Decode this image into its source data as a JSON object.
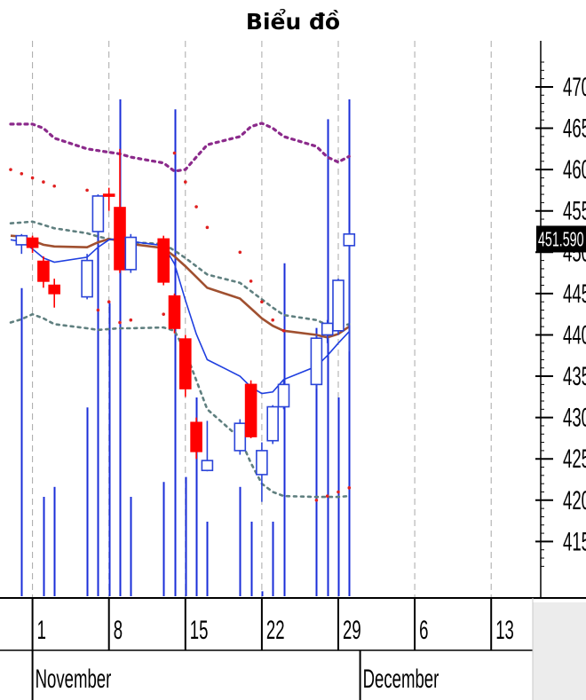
{
  "title": "Biểu đồ",
  "chart_data": {
    "type": "candlestick",
    "title": "Biểu đồ",
    "x_ticks": [
      {
        "label": "1",
        "date": "2023-11-01"
      },
      {
        "label": "8",
        "date": "2023-11-08"
      },
      {
        "label": "15",
        "date": "2023-11-15"
      },
      {
        "label": "22",
        "date": "2023-11-22"
      },
      {
        "label": "29",
        "date": "2023-11-29"
      },
      {
        "label": "6",
        "date": "2023-12-06"
      },
      {
        "label": "13",
        "date": "2023-12-13"
      }
    ],
    "months": [
      {
        "label": "November",
        "date": "2023-11-01"
      },
      {
        "label": "December",
        "date": "2023-12-01"
      }
    ],
    "y_ticks": [
      470,
      465,
      460,
      455,
      450,
      445,
      440,
      435,
      430,
      425,
      420,
      415
    ],
    "y_tick_labels": [
      "470",
      "465",
      "460",
      "455",
      "450",
      "445",
      "440",
      "435",
      "430",
      "425",
      "420",
      "415"
    ],
    "ylim": [
      411.5,
      473
    ],
    "xlim": [
      "2023-10-30",
      "2023-12-15"
    ],
    "last_price_label": "451.590",
    "last_price": 451.59,
    "colors": {
      "up_candle": "#2a44d8",
      "down_candle": "#ff0000",
      "volume": "#1a2ed8",
      "ma_fast": "#1f3fe0",
      "ma_slow": "#a05030",
      "bollinger_outer": "#8b2a8b",
      "bollinger_inner": "#5f7f7f",
      "sar": "#e02020",
      "grid": "#a8a8a8",
      "price_label_bg": "#000000",
      "price_label_text": "#ffffff",
      "axis_band": "#ececec"
    },
    "candles": [
      {
        "date": "2023-10-31",
        "open": 450.9,
        "high": 452.2,
        "low": 449.8,
        "close": 452.0
      },
      {
        "date": "2023-11-01",
        "open": 451.7,
        "high": 452.0,
        "low": 449.9,
        "close": 450.6
      },
      {
        "date": "2023-11-02",
        "open": 448.9,
        "high": 449.5,
        "low": 445.7,
        "close": 446.5
      },
      {
        "date": "2023-11-03",
        "open": 446.0,
        "high": 446.8,
        "low": 443.3,
        "close": 445.0
      },
      {
        "date": "2023-11-06",
        "open": 444.6,
        "high": 449.8,
        "low": 444.3,
        "close": 449.0
      },
      {
        "date": "2023-11-07",
        "open": 452.5,
        "high": 457.0,
        "low": 452.2,
        "close": 456.8
      },
      {
        "date": "2023-11-08",
        "open": 457.0,
        "high": 457.8,
        "low": 455.0,
        "close": 456.9
      },
      {
        "date": "2023-11-09",
        "open": 455.4,
        "high": 462.5,
        "low": 447.5,
        "close": 447.9
      },
      {
        "date": "2023-11-10",
        "open": 447.9,
        "high": 452.2,
        "low": 447.5,
        "close": 451.8
      },
      {
        "date": "2023-11-13",
        "open": 451.6,
        "high": 452.0,
        "low": 446.0,
        "close": 446.4
      },
      {
        "date": "2023-11-14",
        "open": 444.7,
        "high": 445.0,
        "low": 440.2,
        "close": 440.8
      },
      {
        "date": "2023-11-15",
        "open": 439.5,
        "high": 440.0,
        "low": 432.5,
        "close": 433.5
      },
      {
        "date": "2023-11-16",
        "open": 429.4,
        "high": 430.0,
        "low": 425.0,
        "close": 425.9
      },
      {
        "date": "2023-11-17",
        "open": 423.6,
        "high": 429.6,
        "low": 423.5,
        "close": 424.8
      },
      {
        "date": "2023-11-20",
        "open": 426.0,
        "high": 429.8,
        "low": 425.5,
        "close": 429.3
      },
      {
        "date": "2023-11-21",
        "open": 434.0,
        "high": 434.5,
        "low": 427.5,
        "close": 427.7
      },
      {
        "date": "2023-11-22",
        "open": 423.1,
        "high": 427.0,
        "low": 419.8,
        "close": 426.0
      },
      {
        "date": "2023-11-23",
        "open": 427.2,
        "high": 431.5,
        "low": 426.8,
        "close": 431.3
      },
      {
        "date": "2023-11-24",
        "open": 431.3,
        "high": 434.5,
        "low": 431.0,
        "close": 434.0
      },
      {
        "date": "2023-11-27",
        "open": 434.0,
        "high": 440.0,
        "low": 433.5,
        "close": 439.6
      },
      {
        "date": "2023-11-28",
        "open": 440.0,
        "high": 441.8,
        "low": 439.0,
        "close": 441.4
      },
      {
        "date": "2023-11-29",
        "open": 440.5,
        "high": 446.8,
        "low": 440.0,
        "close": 446.6
      },
      {
        "date": "2023-11-30",
        "open": 450.8,
        "high": 452.5,
        "low": 438.0,
        "close": 452.2
      }
    ],
    "volume": [
      {
        "date": "2023-10-31",
        "value": 62
      },
      {
        "date": "2023-11-01",
        "value": 0
      },
      {
        "date": "2023-11-02",
        "value": 20
      },
      {
        "date": "2023-11-03",
        "value": 22
      },
      {
        "date": "2023-11-06",
        "value": 38
      },
      {
        "date": "2023-11-07",
        "value": 75
      },
      {
        "date": "2023-11-08",
        "value": 59
      },
      {
        "date": "2023-11-09",
        "value": 100
      },
      {
        "date": "2023-11-10",
        "value": 20
      },
      {
        "date": "2023-11-13",
        "value": 23
      },
      {
        "date": "2023-11-14",
        "value": 98
      },
      {
        "date": "2023-11-15",
        "value": 24
      },
      {
        "date": "2023-11-16",
        "value": 40
      },
      {
        "date": "2023-11-17",
        "value": 15
      },
      {
        "date": "2023-11-20",
        "value": 22
      },
      {
        "date": "2023-11-21",
        "value": 15
      },
      {
        "date": "2023-11-22",
        "value": 1
      },
      {
        "date": "2023-11-23",
        "value": 15
      },
      {
        "date": "2023-11-24",
        "value": 67
      },
      {
        "date": "2023-11-27",
        "value": 54
      },
      {
        "date": "2023-11-28",
        "value": 96
      },
      {
        "date": "2023-11-29",
        "value": 40
      },
      {
        "date": "2023-11-30",
        "value": 100
      }
    ],
    "ma_fast": [
      {
        "date": "2023-10-30",
        "value": 451.5
      },
      {
        "date": "2023-10-31",
        "value": 451.3
      },
      {
        "date": "2023-11-01",
        "value": 450.4
      },
      {
        "date": "2023-11-02",
        "value": 449.3
      },
      {
        "date": "2023-11-03",
        "value": 448.8
      },
      {
        "date": "2023-11-06",
        "value": 449.4
      },
      {
        "date": "2023-11-07",
        "value": 450.6
      },
      {
        "date": "2023-11-08",
        "value": 451.5
      },
      {
        "date": "2023-11-09",
        "value": 451.7
      },
      {
        "date": "2023-11-10",
        "value": 451.3
      },
      {
        "date": "2023-11-13",
        "value": 450.8
      },
      {
        "date": "2023-11-14",
        "value": 448.6
      },
      {
        "date": "2023-11-15",
        "value": 444.2
      },
      {
        "date": "2023-11-16",
        "value": 440.1
      },
      {
        "date": "2023-11-17",
        "value": 437.0
      },
      {
        "date": "2023-11-20",
        "value": 435.0
      },
      {
        "date": "2023-11-21",
        "value": 433.7
      },
      {
        "date": "2023-11-22",
        "value": 432.9
      },
      {
        "date": "2023-11-23",
        "value": 433.1
      },
      {
        "date": "2023-11-24",
        "value": 434.6
      },
      {
        "date": "2023-11-27",
        "value": 436.2
      },
      {
        "date": "2023-11-28",
        "value": 437.5
      },
      {
        "date": "2023-11-29",
        "value": 439.0
      },
      {
        "date": "2023-11-30",
        "value": 440.4
      }
    ],
    "ma_slow": [
      {
        "date": "2023-10-30",
        "value": 452.0
      },
      {
        "date": "2023-10-31",
        "value": 451.9
      },
      {
        "date": "2023-11-01",
        "value": 451.4
      },
      {
        "date": "2023-11-02",
        "value": 450.9
      },
      {
        "date": "2023-11-03",
        "value": 450.7
      },
      {
        "date": "2023-11-06",
        "value": 450.6
      },
      {
        "date": "2023-11-07",
        "value": 451.2
      },
      {
        "date": "2023-11-08",
        "value": 451.6
      },
      {
        "date": "2023-11-09",
        "value": 451.4
      },
      {
        "date": "2023-11-10",
        "value": 451.0
      },
      {
        "date": "2023-11-13",
        "value": 450.5
      },
      {
        "date": "2023-11-14",
        "value": 449.5
      },
      {
        "date": "2023-11-15",
        "value": 448.3
      },
      {
        "date": "2023-11-16",
        "value": 447.0
      },
      {
        "date": "2023-11-17",
        "value": 445.7
      },
      {
        "date": "2023-11-20",
        "value": 444.4
      },
      {
        "date": "2023-11-21",
        "value": 443.2
      },
      {
        "date": "2023-11-22",
        "value": 442.0
      },
      {
        "date": "2023-11-23",
        "value": 441.1
      },
      {
        "date": "2023-11-24",
        "value": 440.5
      },
      {
        "date": "2023-11-27",
        "value": 440.0
      },
      {
        "date": "2023-11-28",
        "value": 439.7
      },
      {
        "date": "2023-11-29",
        "value": 440.1
      },
      {
        "date": "2023-11-30",
        "value": 441.0
      }
    ],
    "bollinger_upper": [
      {
        "date": "2023-10-30",
        "value": 465.5
      },
      {
        "date": "2023-11-01",
        "value": 465.5
      },
      {
        "date": "2023-11-02",
        "value": 465.0
      },
      {
        "date": "2023-11-03",
        "value": 463.8
      },
      {
        "date": "2023-11-06",
        "value": 462.5
      },
      {
        "date": "2023-11-07",
        "value": 462.3
      },
      {
        "date": "2023-11-08",
        "value": 462.1
      },
      {
        "date": "2023-11-09",
        "value": 461.9
      },
      {
        "date": "2023-11-10",
        "value": 461.5
      },
      {
        "date": "2023-11-13",
        "value": 460.8
      },
      {
        "date": "2023-11-14",
        "value": 459.8
      },
      {
        "date": "2023-11-15",
        "value": 460.0
      },
      {
        "date": "2023-11-16",
        "value": 461.5
      },
      {
        "date": "2023-11-17",
        "value": 463.0
      },
      {
        "date": "2023-11-20",
        "value": 464.0
      },
      {
        "date": "2023-11-21",
        "value": 465.2
      },
      {
        "date": "2023-11-22",
        "value": 465.6
      },
      {
        "date": "2023-11-23",
        "value": 465.0
      },
      {
        "date": "2023-11-24",
        "value": 464.0
      },
      {
        "date": "2023-11-27",
        "value": 462.8
      },
      {
        "date": "2023-11-28",
        "value": 461.5
      },
      {
        "date": "2023-11-29",
        "value": 460.9
      },
      {
        "date": "2023-11-30",
        "value": 461.6
      }
    ],
    "bollinger_mid": [
      {
        "date": "2023-10-30",
        "value": 453.5
      },
      {
        "date": "2023-10-31",
        "value": 453.6
      },
      {
        "date": "2023-11-01",
        "value": 453.7
      },
      {
        "date": "2023-11-02",
        "value": 453.3
      },
      {
        "date": "2023-11-03",
        "value": 452.9
      },
      {
        "date": "2023-11-06",
        "value": 452.3
      },
      {
        "date": "2023-11-07",
        "value": 451.9
      },
      {
        "date": "2023-11-08",
        "value": 451.6
      },
      {
        "date": "2023-11-09",
        "value": 451.4
      },
      {
        "date": "2023-11-10",
        "value": 451.2
      },
      {
        "date": "2023-11-13",
        "value": 451.0
      },
      {
        "date": "2023-11-14",
        "value": 450.2
      },
      {
        "date": "2023-11-15",
        "value": 449.3
      },
      {
        "date": "2023-11-16",
        "value": 448.3
      },
      {
        "date": "2023-11-17",
        "value": 447.3
      },
      {
        "date": "2023-11-20",
        "value": 446.3
      },
      {
        "date": "2023-11-21",
        "value": 445.3
      },
      {
        "date": "2023-11-22",
        "value": 444.3
      },
      {
        "date": "2023-11-23",
        "value": 443.3
      },
      {
        "date": "2023-11-24",
        "value": 442.4
      },
      {
        "date": "2023-11-27",
        "value": 441.8
      },
      {
        "date": "2023-11-28",
        "value": 441.2
      },
      {
        "date": "2023-11-29",
        "value": 441.0
      },
      {
        "date": "2023-11-30",
        "value": 441.3
      }
    ],
    "bollinger_lower": [
      {
        "date": "2023-10-30",
        "value": 441.5
      },
      {
        "date": "2023-10-31",
        "value": 441.9
      },
      {
        "date": "2023-11-01",
        "value": 442.5
      },
      {
        "date": "2023-11-02",
        "value": 442.0
      },
      {
        "date": "2023-11-03",
        "value": 441.3
      },
      {
        "date": "2023-11-06",
        "value": 440.8
      },
      {
        "date": "2023-11-07",
        "value": 440.6
      },
      {
        "date": "2023-11-08",
        "value": 440.7
      },
      {
        "date": "2023-11-09",
        "value": 440.8
      },
      {
        "date": "2023-11-10",
        "value": 440.8
      },
      {
        "date": "2023-11-13",
        "value": 440.9
      },
      {
        "date": "2023-11-14",
        "value": 440.5
      },
      {
        "date": "2023-11-15",
        "value": 438.0
      },
      {
        "date": "2023-11-16",
        "value": 434.5
      },
      {
        "date": "2023-11-17",
        "value": 431.0
      },
      {
        "date": "2023-11-20",
        "value": 427.5
      },
      {
        "date": "2023-11-21",
        "value": 424.5
      },
      {
        "date": "2023-11-22",
        "value": 422.0
      },
      {
        "date": "2023-11-23",
        "value": 421.0
      },
      {
        "date": "2023-11-24",
        "value": 420.5
      },
      {
        "date": "2023-11-27",
        "value": 420.4
      },
      {
        "date": "2023-11-28",
        "value": 420.4
      },
      {
        "date": "2023-11-29",
        "value": 420.4
      },
      {
        "date": "2023-11-30",
        "value": 420.5
      }
    ],
    "sar": [
      {
        "date": "2023-10-30",
        "value": 460.0
      },
      {
        "date": "2023-10-31",
        "value": 459.5
      },
      {
        "date": "2023-11-01",
        "value": 459.0
      },
      {
        "date": "2023-11-02",
        "value": 458.5
      },
      {
        "date": "2023-11-03",
        "value": 458.0
      },
      {
        "date": "2023-11-06",
        "value": 457.5
      },
      {
        "date": "2023-11-07",
        "value": 443.0
      },
      {
        "date": "2023-11-08",
        "value": 444.0
      },
      {
        "date": "2023-11-09",
        "value": 441.5
      },
      {
        "date": "2023-11-10",
        "value": 441.8
      },
      {
        "date": "2023-11-13",
        "value": 442.5
      },
      {
        "date": "2023-11-14",
        "value": 462.0
      },
      {
        "date": "2023-11-15",
        "value": 458.5
      },
      {
        "date": "2023-11-16",
        "value": 455.5
      },
      {
        "date": "2023-11-17",
        "value": 453.0
      },
      {
        "date": "2023-11-20",
        "value": 450.0
      },
      {
        "date": "2023-11-21",
        "value": 446.5
      },
      {
        "date": "2023-11-22",
        "value": 444.0
      },
      {
        "date": "2023-11-23",
        "value": 441.8
      },
      {
        "date": "2023-11-24",
        "value": 440.5
      },
      {
        "date": "2023-11-27",
        "value": 420.0
      },
      {
        "date": "2023-11-28",
        "value": 420.5
      },
      {
        "date": "2023-11-29",
        "value": 421.0
      },
      {
        "date": "2023-11-30",
        "value": 421.5
      }
    ]
  }
}
